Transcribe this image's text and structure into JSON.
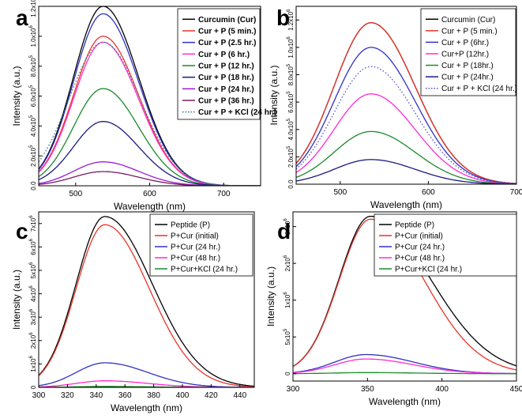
{
  "figure": {
    "panels": [
      "a",
      "b",
      "c",
      "d"
    ]
  },
  "chart_data": [
    {
      "panel": "a",
      "type": "line",
      "xlabel": "Wavelength (nm)",
      "ylabel": "Intensity (a.u.)",
      "xlim": [
        450,
        750
      ],
      "ylim": [
        0,
        1200000
      ],
      "xticks": [
        500,
        600,
        700
      ],
      "yticks": [
        {
          "mant": "0.0",
          "exp": ""
        },
        {
          "mant": "2.0x10",
          "exp": "5"
        },
        {
          "mant": "4.0x10",
          "exp": "5"
        },
        {
          "mant": "6.0x10",
          "exp": "5"
        },
        {
          "mant": "8.0x10",
          "exp": "5"
        },
        {
          "mant": "1.0x10",
          "exp": "6"
        },
        {
          "mant": "1.2x10",
          "exp": "6"
        }
      ],
      "legend_position": "top-right",
      "legend_bold": true,
      "series": [
        {
          "name": "Curcumin (Cur)",
          "color": "#000000",
          "dash": false,
          "peak_x": 537,
          "peak_y": 1200000,
          "width_left": 40,
          "width_right": 48
        },
        {
          "name": "Cur + P (5 min.)",
          "color": "#e8332a",
          "dash": false,
          "peak_x": 537,
          "peak_y": 1000000,
          "width_left": 40,
          "width_right": 48
        },
        {
          "name": "Cur + P (2.5 hr.)",
          "color": "#3030c8",
          "dash": false,
          "peak_x": 537,
          "peak_y": 1150000,
          "width_left": 40,
          "width_right": 48
        },
        {
          "name": "Cur + P (6 hr.)",
          "color": "#ff2ad4",
          "dash": false,
          "peak_x": 537,
          "peak_y": 960000,
          "width_left": 40,
          "width_right": 48
        },
        {
          "name": "Cur + P (12 hr.)",
          "color": "#1a8a2a",
          "dash": false,
          "peak_x": 537,
          "peak_y": 650000,
          "width_left": 40,
          "width_right": 48
        },
        {
          "name": "Cur + P (18 hr.)",
          "color": "#1a1a80",
          "dash": false,
          "peak_x": 537,
          "peak_y": 430000,
          "width_left": 40,
          "width_right": 48
        },
        {
          "name": "Cur + P (24 hr.)",
          "color": "#9a1ad6",
          "dash": false,
          "peak_x": 537,
          "peak_y": 160000,
          "width_left": 40,
          "width_right": 48
        },
        {
          "name": "Cur + P (36 hr.)",
          "color": "#7a1a66",
          "dash": false,
          "peak_x": 537,
          "peak_y": 95000,
          "width_left": 40,
          "width_right": 48
        },
        {
          "name": "Cur + P + KCl (24 hr.)",
          "color": "#2a7a7a",
          "dash": true,
          "peak_x": 537,
          "peak_y": 960000,
          "width_left": 46,
          "width_right": 50
        }
      ]
    },
    {
      "panel": "b",
      "type": "line",
      "xlabel": "Wavelength (nm)",
      "ylabel": "Intensity (a.u.)",
      "xlim": [
        450,
        700
      ],
      "ylim": [
        0,
        1300000
      ],
      "xticks": [
        500,
        600,
        700
      ],
      "yticks": [
        {
          "mant": "0.0",
          "exp": ""
        },
        {
          "mant": "2.0x10",
          "exp": "5"
        },
        {
          "mant": "4.0x10",
          "exp": "5"
        },
        {
          "mant": "6.0x10",
          "exp": "5"
        },
        {
          "mant": "8.0x10",
          "exp": "5"
        },
        {
          "mant": "1.0x10",
          "exp": "6"
        },
        {
          "mant": "1.2x10",
          "exp": "6"
        }
      ],
      "legend_position": "top-right",
      "legend_bold": false,
      "series": [
        {
          "name": "Curcumin (Cur)",
          "color": "#000000",
          "dash": false,
          "peak_x": 535,
          "peak_y": 1180000,
          "width_left": 42,
          "width_right": 50
        },
        {
          "name": "Cur + P  (5 min.)",
          "color": "#e8332a",
          "dash": false,
          "peak_x": 535,
          "peak_y": 1180000,
          "width_left": 42,
          "width_right": 50
        },
        {
          "name": "Cur + P  (6hr.)",
          "color": "#3030c8",
          "dash": false,
          "peak_x": 535,
          "peak_y": 1000000,
          "width_left": 42,
          "width_right": 50
        },
        {
          "name": "Cur+P  (12hr.)",
          "color": "#ff2ad4",
          "dash": false,
          "peak_x": 535,
          "peak_y": 660000,
          "width_left": 42,
          "width_right": 50
        },
        {
          "name": "Cur + P  (18hr.)",
          "color": "#1a8a2a",
          "dash": false,
          "peak_x": 535,
          "peak_y": 385000,
          "width_left": 42,
          "width_right": 50
        },
        {
          "name": "Cur + P  (24hr.)",
          "color": "#1a1a80",
          "dash": false,
          "peak_x": 535,
          "peak_y": 180000,
          "width_left": 42,
          "width_right": 50
        },
        {
          "name": "Cur + P + KCl (24 hr.)",
          "color": "#5050d0",
          "dash": true,
          "peak_x": 535,
          "peak_y": 860000,
          "width_left": 42,
          "width_right": 50
        }
      ]
    },
    {
      "panel": "c",
      "type": "line",
      "xlabel": "Wavelength (nm)",
      "ylabel": "Intensity (a.u.)",
      "xlim": [
        300,
        450
      ],
      "ylim": [
        0,
        7500000
      ],
      "xticks": [
        300,
        320,
        340,
        360,
        380,
        400,
        420,
        440
      ],
      "yticks": [
        {
          "mant": "0",
          "exp": ""
        },
        {
          "mant": "1x10",
          "exp": "6"
        },
        {
          "mant": "2x10",
          "exp": "6"
        },
        {
          "mant": "3x10",
          "exp": "6"
        },
        {
          "mant": "4x10",
          "exp": "6"
        },
        {
          "mant": "5x10",
          "exp": "6"
        },
        {
          "mant": "6x10",
          "exp": "6"
        },
        {
          "mant": "7x10",
          "exp": "6"
        }
      ],
      "legend_position": "top-right",
      "legend_bold": false,
      "series": [
        {
          "name": "Peptide (P)",
          "color": "#000000",
          "dash": false,
          "peak_x": 346,
          "peak_y": 7300000,
          "width_left": 20,
          "width_right": 33
        },
        {
          "name": "P+Cur (initial)",
          "color": "#e8332a",
          "dash": false,
          "peak_x": 346,
          "peak_y": 6950000,
          "width_left": 20,
          "width_right": 31
        },
        {
          "name": "P+Cur (24 hr.)",
          "color": "#3030c8",
          "dash": false,
          "peak_x": 346,
          "peak_y": 1050000,
          "width_left": 20,
          "width_right": 30
        },
        {
          "name": "P+Cur (48 hr.)",
          "color": "#ff2ad4",
          "dash": false,
          "peak_x": 346,
          "peak_y": 280000,
          "width_left": 20,
          "width_right": 30
        },
        {
          "name": "P+Cur+KCl (24 hr.)",
          "color": "#1a8a2a",
          "dash": false,
          "peak_x": 346,
          "peak_y": 40000,
          "width_left": 20,
          "width_right": 30
        }
      ]
    },
    {
      "panel": "d",
      "type": "line",
      "xlabel": "Wavelength (nm)",
      "ylabel": "Intensity (a.u.)",
      "xlim": [
        300,
        450
      ],
      "ylim": [
        -100000,
        2200000
      ],
      "xticks": [
        300,
        350,
        400,
        450
      ],
      "yticks": [
        {
          "mant": "0",
          "exp": ""
        },
        {
          "mant": "5x10",
          "exp": "5"
        },
        {
          "mant": "1x10",
          "exp": "6"
        },
        {
          "mant": "2x10",
          "exp": "6"
        },
        {
          "mant": "2x10",
          "exp": "6"
        }
      ],
      "ytick_values": [
        0,
        500000,
        1000000,
        1500000,
        2000000
      ],
      "legend_position": "top-right",
      "legend_bold": false,
      "series": [
        {
          "name": "Peptide (P)",
          "color": "#000000",
          "dash": false,
          "peak_x": 352,
          "peak_y": 2140000,
          "width_left": 21,
          "width_right": 40
        },
        {
          "name": "P+Cur (initial)",
          "color": "#e8332a",
          "dash": false,
          "peak_x": 352,
          "peak_y": 2100000,
          "width_left": 21,
          "width_right": 36
        },
        {
          "name": "P+Cur (24 hr.)",
          "color": "#3030c8",
          "dash": false,
          "peak_x": 349,
          "peak_y": 260000,
          "width_left": 21,
          "width_right": 32
        },
        {
          "name": "P+Cur (48 hr.)",
          "color": "#ff2ad4",
          "dash": false,
          "peak_x": 349,
          "peak_y": 200000,
          "width_left": 21,
          "width_right": 32
        },
        {
          "name": "P+Cur+KCl (24 hr.)",
          "color": "#1a8a2a",
          "dash": false,
          "peak_x": 349,
          "peak_y": 15000,
          "width_left": 21,
          "width_right": 32
        }
      ]
    }
  ]
}
